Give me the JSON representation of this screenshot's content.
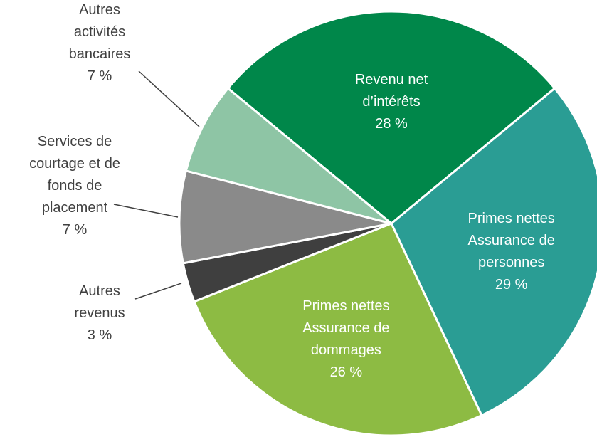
{
  "chart_data": {
    "type": "pie",
    "categories": [
      "Revenu net\nd’intérêts",
      "Primes nettes\nAssurance de\npersonnes",
      "Primes nettes\nAssurance de\ndommages",
      "Autres\nrevenus",
      "Services de\ncourtage et de\nfonds de\nplacement",
      "Autres\nactivités\nbancaires"
    ],
    "values": [
      28,
      29,
      26,
      3,
      7,
      7
    ],
    "value_labels": [
      "28 %",
      "29 %",
      "26 %",
      "3 %",
      "7 %",
      "7 %"
    ],
    "colors": [
      "#00874a",
      "#2a9d94",
      "#8dbb43",
      "#3f3f3f",
      "#8a8a8a",
      "#8ec5a5"
    ]
  }
}
